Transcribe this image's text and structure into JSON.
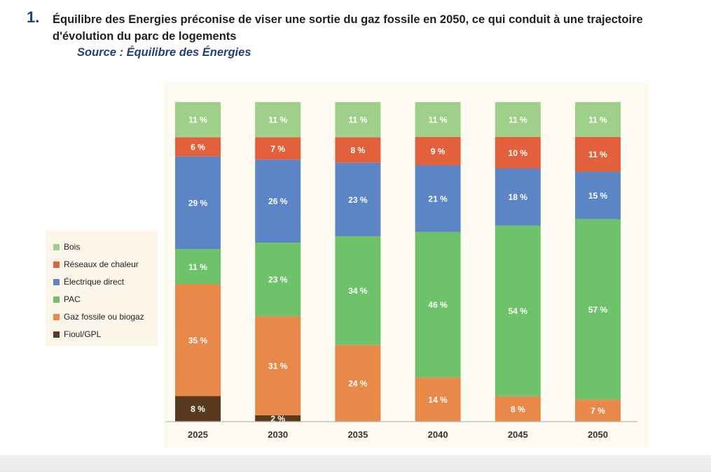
{
  "header": {
    "number": "1.",
    "title": "Équilibre des Energies préconise de viser une sortie du gaz fossile en 2050, ce qui conduit à une trajectoire d'évolution du parc de logements",
    "source": "Source : Équilibre des Énergies"
  },
  "chart_data": {
    "type": "bar",
    "stacked": true,
    "categories": [
      "2025",
      "2030",
      "2035",
      "2040",
      "2045",
      "2050"
    ],
    "ylim": [
      0,
      100
    ],
    "grid": false,
    "legend_position": "left",
    "series": [
      {
        "name": "Fioul/GPL",
        "color": "#5a3a1e",
        "values": [
          8,
          2,
          0,
          0,
          0,
          0
        ],
        "labels": [
          "8 %",
          "2 %",
          "",
          "",
          "",
          ""
        ]
      },
      {
        "name": "Gaz fossile ou biogaz",
        "color": "#e8894a",
        "values": [
          35,
          31,
          24,
          14,
          8,
          7
        ],
        "labels": [
          "35 %",
          "31 %",
          "24 %",
          "14 %",
          "8 %",
          "7 %"
        ]
      },
      {
        "name": "PAC",
        "color": "#6ec36a",
        "values": [
          11,
          23,
          34,
          46,
          54,
          57
        ],
        "labels": [
          "11 %",
          "23 %",
          "34 %",
          "46 %",
          "54 %",
          "57 %"
        ]
      },
      {
        "name": "Électrique direct",
        "color": "#5b85c4",
        "values": [
          29,
          26,
          23,
          21,
          18,
          15
        ],
        "labels": [
          "29 %",
          "26 %",
          "23 %",
          "21 %",
          "18 %",
          "15 %"
        ]
      },
      {
        "name": "Réseaux de chaleur",
        "color": "#e2613c",
        "values": [
          6,
          7,
          8,
          9,
          10,
          11
        ],
        "labels": [
          "6 %",
          "7 %",
          "8 %",
          "9 %",
          "10 %",
          "11 %"
        ]
      },
      {
        "name": "Bois",
        "color": "#9fd08a",
        "values": [
          11,
          11,
          11,
          11,
          11,
          11
        ],
        "labels": [
          "11 %",
          "11 %",
          "11 %",
          "11 %",
          "11 %",
          "11 %"
        ]
      }
    ],
    "legend": [
      "Bois",
      "Réseaux de chaleur",
      "Électrique direct",
      "PAC",
      "Gaz fossile ou biogaz",
      "Fioul/GPL"
    ]
  }
}
